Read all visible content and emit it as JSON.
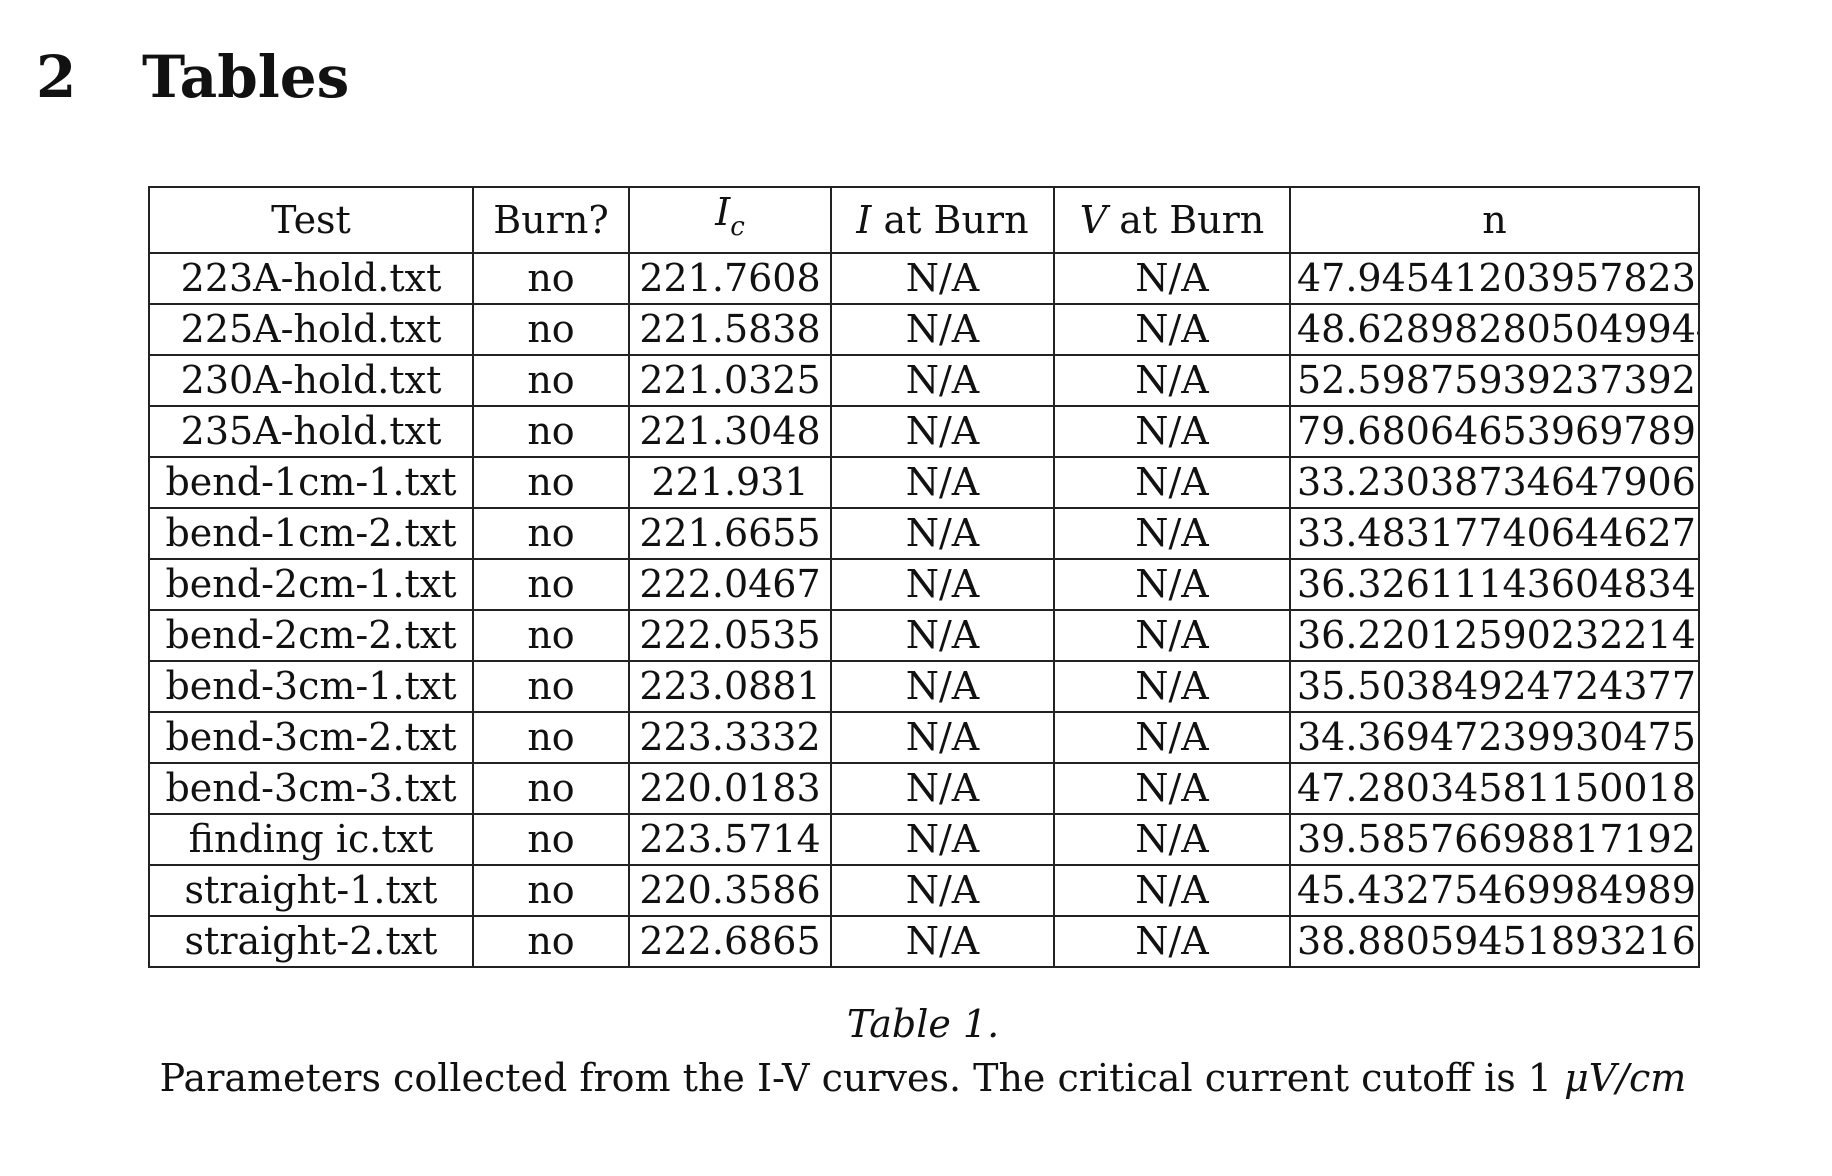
{
  "section": {
    "number": "2",
    "title": "Tables"
  },
  "table": {
    "headers": {
      "test": "Test",
      "burn": "Burn?",
      "ic_main": "I",
      "ic_sub": "c",
      "i_burn_var": "I",
      "i_burn_rest": " at Burn",
      "v_burn_var": "V",
      "v_burn_rest": " at Burn",
      "n": "n"
    },
    "rows": [
      [
        "223A-hold.txt",
        "no",
        "221.7608",
        "N/A",
        "N/A",
        "47.94541203957823"
      ],
      [
        "225A-hold.txt",
        "no",
        "221.5838",
        "N/A",
        "N/A",
        "48.628982805049944"
      ],
      [
        "230A-hold.txt",
        "no",
        "221.0325",
        "N/A",
        "N/A",
        "52.59875939237392"
      ],
      [
        "235A-hold.txt",
        "no",
        "221.3048",
        "N/A",
        "N/A",
        "79.68064653969789"
      ],
      [
        "bend-1cm-1.txt",
        "no",
        "221.931",
        "N/A",
        "N/A",
        "33.23038734647906"
      ],
      [
        "bend-1cm-2.txt",
        "no",
        "221.6655",
        "N/A",
        "N/A",
        "33.48317740644627"
      ],
      [
        "bend-2cm-1.txt",
        "no",
        "222.0467",
        "N/A",
        "N/A",
        "36.32611143604834"
      ],
      [
        "bend-2cm-2.txt",
        "no",
        "222.0535",
        "N/A",
        "N/A",
        "36.22012590232214"
      ],
      [
        "bend-3cm-1.txt",
        "no",
        "223.0881",
        "N/A",
        "N/A",
        "35.50384924724377"
      ],
      [
        "bend-3cm-2.txt",
        "no",
        "223.3332",
        "N/A",
        "N/A",
        "34.369472399304755"
      ],
      [
        "bend-3cm-3.txt",
        "no",
        "220.0183",
        "N/A",
        "N/A",
        "47.28034581150018"
      ],
      [
        "finding ic.txt",
        "no",
        "223.5714",
        "N/A",
        "N/A",
        "39.585766988171926"
      ],
      [
        "straight-1.txt",
        "no",
        "220.3586",
        "N/A",
        "N/A",
        "45.43275469984989"
      ],
      [
        "straight-2.txt",
        "no",
        "222.6865",
        "N/A",
        "N/A",
        "38.88059451893216"
      ]
    ]
  },
  "caption": {
    "label": "Table 1.",
    "text": "Parameters collected from the I-V curves. The critical current cutoff is 1 ",
    "unit": "μV/cm"
  }
}
